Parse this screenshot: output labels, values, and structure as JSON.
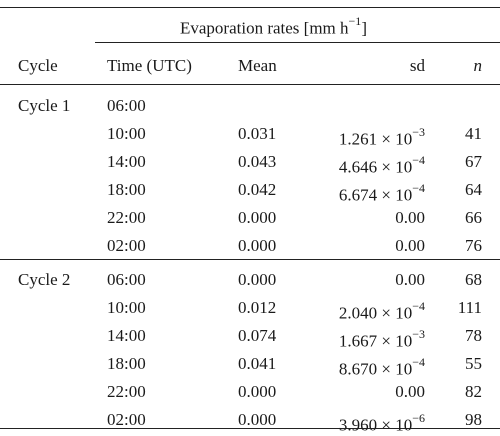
{
  "header": {
    "super": "Evaporation rates [mm h",
    "super_unit_exp": "−1",
    "super_close": "]",
    "cycle": "Cycle",
    "time": "Time (UTC)",
    "mean": "Mean",
    "sd": "sd",
    "n": "n"
  },
  "rows": [
    {
      "cycle": "Cycle 1",
      "time": "06:00",
      "mean": "",
      "sd_mant": "",
      "sd_times": "",
      "sd_exp": "",
      "n": ""
    },
    {
      "cycle": "",
      "time": "10:00",
      "mean": "0.031",
      "sd_mant": "1.261",
      "sd_times": " × 10",
      "sd_exp": "−3",
      "n": "41"
    },
    {
      "cycle": "",
      "time": "14:00",
      "mean": "0.043",
      "sd_mant": "4.646",
      "sd_times": " × 10",
      "sd_exp": "−4",
      "n": "67"
    },
    {
      "cycle": "",
      "time": "18:00",
      "mean": "0.042",
      "sd_mant": "6.674",
      "sd_times": " × 10",
      "sd_exp": "−4",
      "n": "64"
    },
    {
      "cycle": "",
      "time": "22:00",
      "mean": "0.000",
      "sd_mant": "0.00",
      "sd_times": "",
      "sd_exp": "",
      "n": "66"
    },
    {
      "cycle": "",
      "time": "02:00",
      "mean": "0.000",
      "sd_mant": "0.00",
      "sd_times": "",
      "sd_exp": "",
      "n": "76"
    },
    {
      "cycle": "Cycle 2",
      "time": "06:00",
      "mean": "0.000",
      "sd_mant": "0.00",
      "sd_times": "",
      "sd_exp": "",
      "n": "68"
    },
    {
      "cycle": "",
      "time": "10:00",
      "mean": "0.012",
      "sd_mant": "2.040",
      "sd_times": " × 10",
      "sd_exp": "−4",
      "n": "111"
    },
    {
      "cycle": "",
      "time": "14:00",
      "mean": "0.074",
      "sd_mant": "1.667",
      "sd_times": " × 10",
      "sd_exp": "−3",
      "n": "78"
    },
    {
      "cycle": "",
      "time": "18:00",
      "mean": "0.041",
      "sd_mant": "8.670",
      "sd_times": " × 10",
      "sd_exp": "−4",
      "n": "55"
    },
    {
      "cycle": "",
      "time": "22:00",
      "mean": "0.000",
      "sd_mant": "0.00",
      "sd_times": "",
      "sd_exp": "",
      "n": "82"
    },
    {
      "cycle": "",
      "time": "02:00",
      "mean": "0.000",
      "sd_mant": "3.960",
      "sd_times": " × 10",
      "sd_exp": "−6",
      "n": "98"
    }
  ]
}
